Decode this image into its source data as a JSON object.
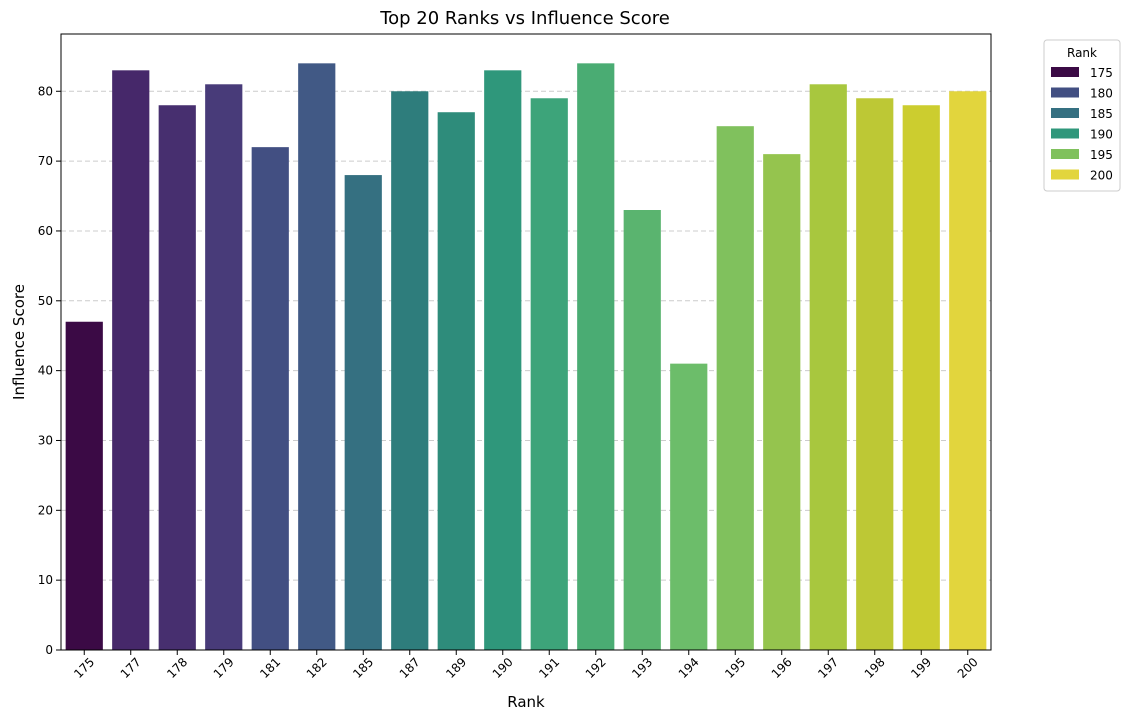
{
  "chart_data": {
    "type": "bar",
    "title": "Top 20 Ranks vs Influence Score",
    "xlabel": "Rank",
    "ylabel": "Influence Score",
    "ylim": [
      0,
      88.2
    ],
    "yticks": [
      0,
      10,
      20,
      30,
      40,
      50,
      60,
      70,
      80
    ],
    "grid": "y-dashed",
    "categories": [
      "175",
      "177",
      "178",
      "179",
      "181",
      "182",
      "185",
      "187",
      "189",
      "190",
      "191",
      "192",
      "193",
      "194",
      "195",
      "196",
      "197",
      "198",
      "199",
      "200"
    ],
    "values": [
      47,
      83,
      78,
      81,
      72,
      84,
      68,
      80,
      77,
      83,
      79,
      84,
      63,
      41,
      75,
      71,
      81,
      79,
      78,
      80
    ],
    "colors": [
      "#3b0a45",
      "#46286a",
      "#472f6f",
      "#483b79",
      "#424f82",
      "#415985",
      "#357081",
      "#2e7d7c",
      "#2e8c7b",
      "#2f977b",
      "#3da47a",
      "#4aac73",
      "#5ab46f",
      "#6cbd6a",
      "#80c15d",
      "#95c44e",
      "#a8c73e",
      "#bdc835",
      "#cccd2f",
      "#e2d53d"
    ],
    "legend": {
      "title": "Rank",
      "placement": "outside-top-right",
      "entries": [
        {
          "label": "175",
          "color": "#3b0a45"
        },
        {
          "label": "180",
          "color": "#424f82"
        },
        {
          "label": "185",
          "color": "#357081"
        },
        {
          "label": "190",
          "color": "#2f977b"
        },
        {
          "label": "195",
          "color": "#80c15d"
        },
        {
          "label": "200",
          "color": "#e2d53d"
        }
      ]
    }
  }
}
